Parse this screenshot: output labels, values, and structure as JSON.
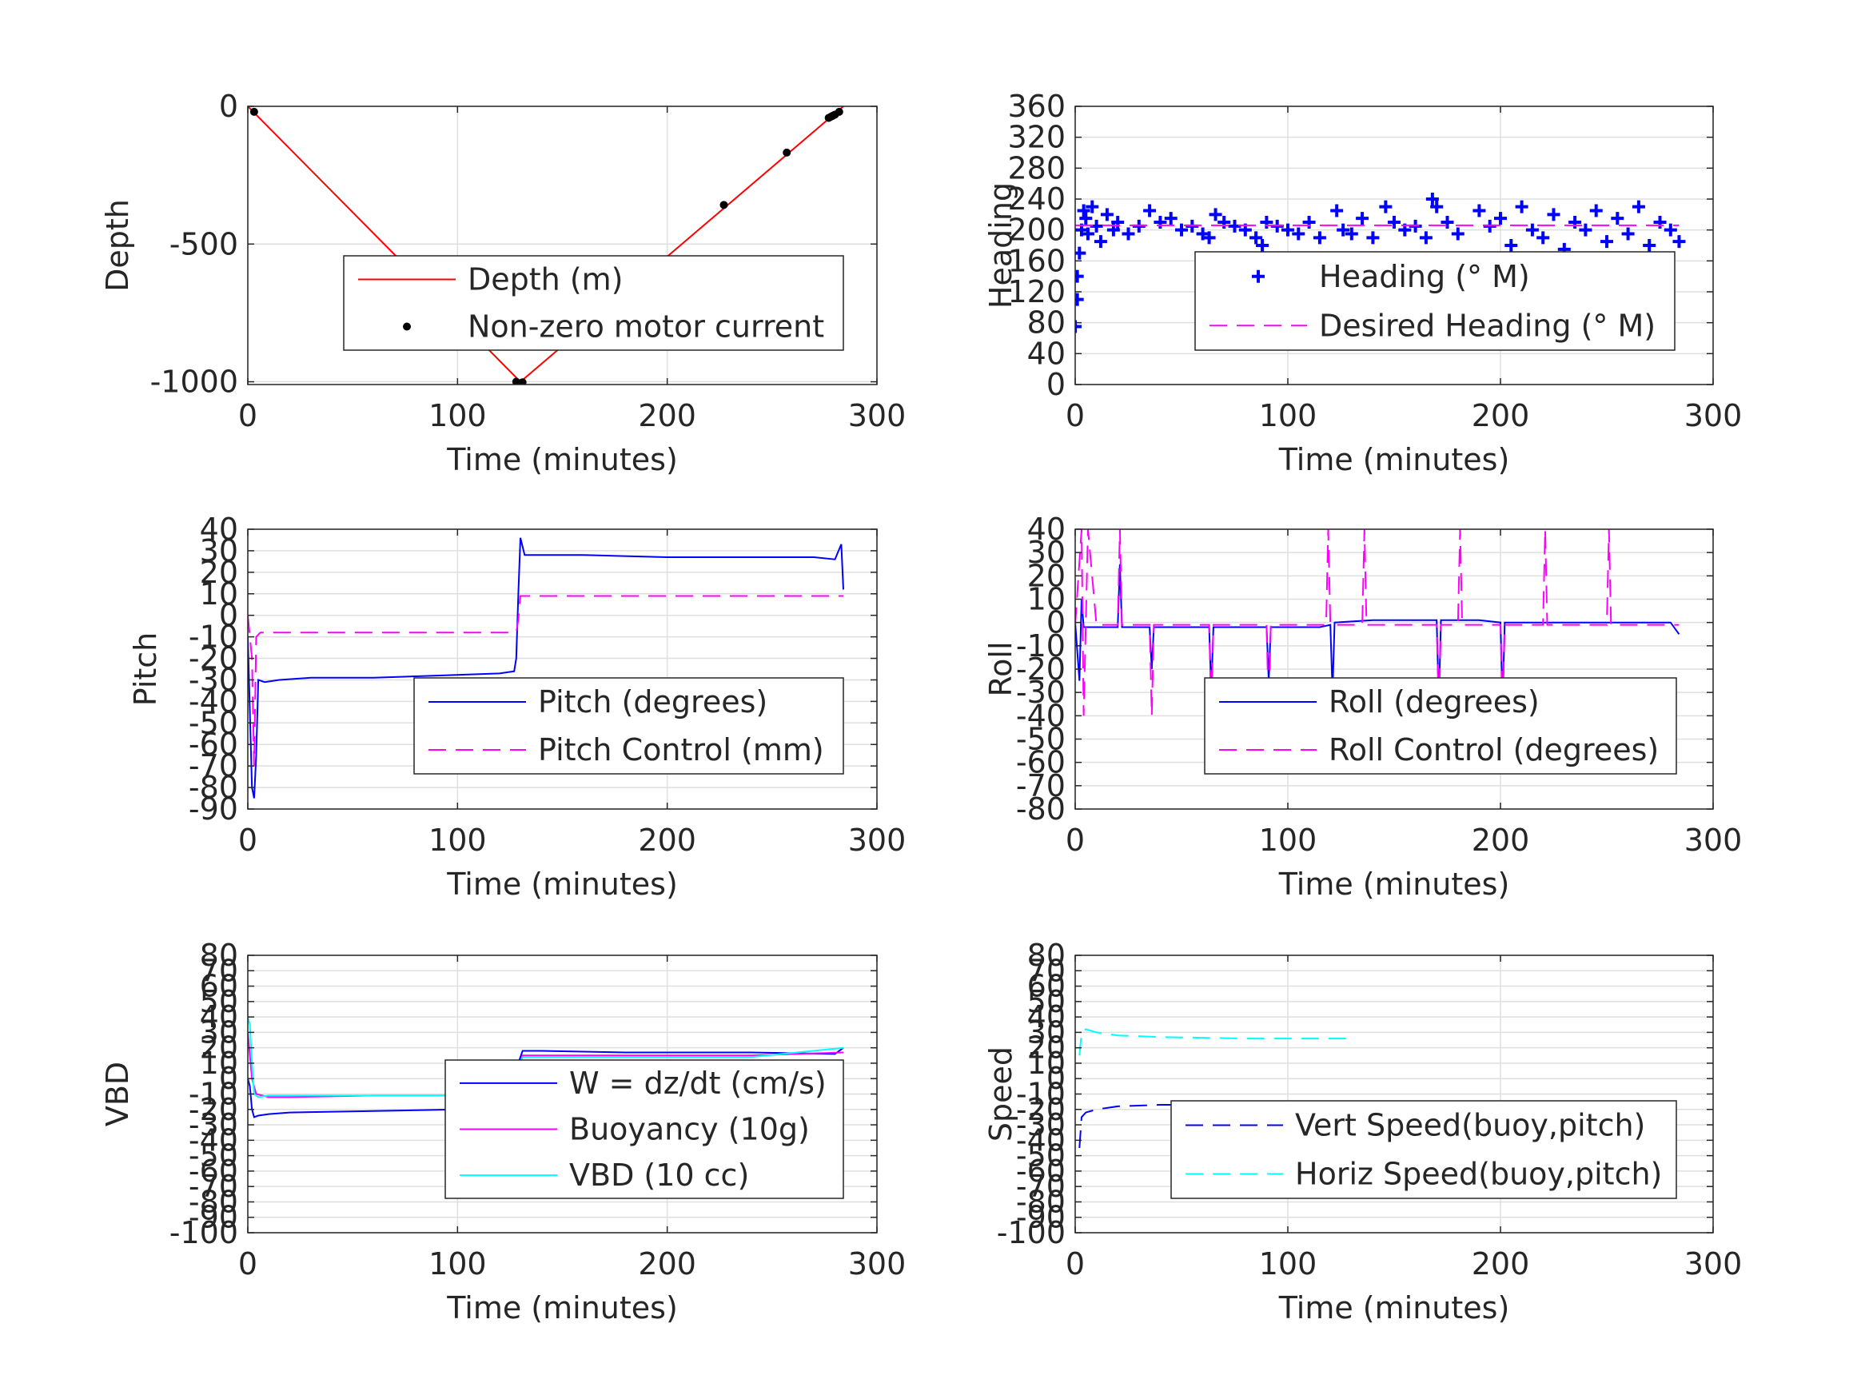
{
  "chart_data": [
    {
      "id": "depth",
      "type": "line",
      "xlabel": "Time (minutes)",
      "ylabel": "Depth",
      "xlim": [
        0,
        300
      ],
      "ylim": [
        -1010,
        0
      ],
      "xticks": [
        0,
        100,
        200,
        300
      ],
      "yticks": [
        0,
        -500,
        -1000
      ],
      "grid": true,
      "legend_position": "center-right",
      "series": [
        {
          "name": "Depth (m)",
          "style": "solid",
          "color": "#ff0000",
          "x": [
            0,
            130,
            284
          ],
          "y": [
            0,
            -1000,
            0
          ]
        },
        {
          "name": "Non-zero motor current",
          "style": "dot",
          "color": "#000000",
          "x": [
            3,
            128,
            129,
            130,
            131,
            227,
            257,
            277,
            278,
            279,
            280,
            282
          ],
          "y": [
            -20,
            -1000,
            -1005,
            -1005,
            -1002,
            -358,
            -168,
            -42,
            -38,
            -34,
            -30,
            -20
          ]
        }
      ]
    },
    {
      "id": "heading",
      "type": "scatter",
      "xlabel": "Time (minutes)",
      "ylabel": "Heading",
      "xlim": [
        0,
        300
      ],
      "ylim": [
        0,
        360
      ],
      "xticks": [
        0,
        100,
        200,
        300
      ],
      "yticks": [
        0,
        40,
        80,
        120,
        160,
        200,
        240,
        280,
        320,
        360
      ],
      "grid": true,
      "legend_position": "center-right",
      "series": [
        {
          "name": "Heading (° M)",
          "style": "plus",
          "color": "#0000ff",
          "x": [
            0,
            1,
            1,
            2,
            3,
            4,
            5,
            6,
            8,
            10,
            12,
            15,
            18,
            20,
            25,
            30,
            35,
            40,
            45,
            50,
            55,
            60,
            63,
            66,
            70,
            75,
            80,
            85,
            88,
            90,
            95,
            100,
            105,
            110,
            115,
            118,
            120,
            123,
            126,
            130,
            135,
            140,
            143,
            146,
            150,
            155,
            160,
            165,
            168,
            170,
            175,
            180,
            185,
            188,
            190,
            195,
            200,
            205,
            210,
            215,
            220,
            225,
            230,
            235,
            240,
            245,
            250,
            255,
            260,
            265,
            270,
            275,
            280,
            284
          ],
          "y": [
            75,
            110,
            140,
            170,
            200,
            225,
            215,
            195,
            230,
            205,
            185,
            220,
            200,
            210,
            195,
            205,
            225,
            210,
            215,
            200,
            205,
            195,
            190,
            220,
            210,
            205,
            200,
            190,
            180,
            210,
            205,
            200,
            195,
            210,
            190,
            160,
            150,
            225,
            200,
            195,
            215,
            190,
            150,
            230,
            210,
            200,
            205,
            190,
            240,
            230,
            210,
            195,
            160,
            150,
            225,
            205,
            215,
            180,
            230,
            200,
            190,
            220,
            175,
            210,
            200,
            225,
            185,
            215,
            195,
            230,
            180,
            210,
            200,
            185
          ]
        },
        {
          "name": "Desired Heading (° M)",
          "style": "dash",
          "color": "#ff00ff",
          "x": [
            0,
            284
          ],
          "y": [
            206,
            206
          ]
        }
      ]
    },
    {
      "id": "pitch",
      "type": "line",
      "xlabel": "Time (minutes)",
      "ylabel": "Pitch",
      "xlim": [
        0,
        300
      ],
      "ylim": [
        -90,
        40
      ],
      "xticks": [
        0,
        100,
        200,
        300
      ],
      "yticks": [
        40,
        30,
        20,
        10,
        0,
        -10,
        -20,
        -30,
        -40,
        -50,
        -60,
        -70,
        -80,
        -90
      ],
      "grid": true,
      "legend_position": "bottom-right",
      "series": [
        {
          "name": "Pitch (degrees)",
          "style": "solid",
          "color": "#0000ff",
          "x": [
            0,
            1,
            2,
            3,
            4,
            5,
            8,
            15,
            30,
            60,
            90,
            120,
            127,
            128,
            129,
            130,
            132,
            140,
            160,
            200,
            240,
            270,
            280,
            283,
            284
          ],
          "y": [
            -10,
            -45,
            -80,
            -85,
            -65,
            -30,
            -31,
            -30,
            -29,
            -29,
            -28,
            -27,
            -26,
            -20,
            10,
            36,
            28,
            28,
            28,
            27,
            27,
            27,
            26,
            33,
            12
          ]
        },
        {
          "name": "Pitch Control (mm)",
          "style": "dash",
          "color": "#ff00ff",
          "x": [
            0,
            2,
            3,
            4,
            6,
            10,
            60,
            110,
            128,
            129,
            130,
            132,
            200,
            284
          ],
          "y": [
            0,
            -20,
            -70,
            -10,
            -8,
            -8,
            -8,
            -8,
            -8,
            -2,
            9,
            9,
            9,
            9
          ]
        }
      ]
    },
    {
      "id": "roll",
      "type": "line",
      "xlabel": "Time (minutes)",
      "ylabel": "Roll",
      "xlim": [
        0,
        300
      ],
      "ylim": [
        -80,
        40
      ],
      "xticks": [
        0,
        100,
        200,
        300
      ],
      "yticks": [
        40,
        30,
        20,
        10,
        0,
        -10,
        -20,
        -30,
        -40,
        -50,
        -60,
        -70,
        -80
      ],
      "grid": true,
      "legend_position": "center-right",
      "series": [
        {
          "name": "Roll (degrees)",
          "style": "solid",
          "color": "#0000ff",
          "x": [
            0,
            2,
            3,
            4,
            5,
            10,
            20,
            21,
            22,
            35,
            36,
            37,
            63,
            64,
            65,
            90,
            91,
            92,
            115,
            120,
            121,
            122,
            140,
            170,
            171,
            172,
            190,
            200,
            201,
            202,
            230,
            260,
            280,
            284
          ],
          "y": [
            0,
            -25,
            10,
            -2,
            -2,
            -2,
            -2,
            25,
            -2,
            -2,
            -20,
            -2,
            -2,
            -30,
            -2,
            -2,
            -25,
            -2,
            -2,
            -1,
            -30,
            0,
            1,
            1,
            -35,
            1,
            1,
            0,
            -35,
            0,
            0,
            0,
            0,
            -5
          ]
        },
        {
          "name": "Roll Control (degrees)",
          "style": "dash",
          "color": "#ff00ff",
          "x": [
            0,
            3,
            4,
            6,
            10,
            20,
            21,
            22,
            35,
            36,
            37,
            63,
            64,
            65,
            90,
            91,
            92,
            118,
            119,
            120,
            135,
            136,
            137,
            170,
            171,
            172,
            180,
            181,
            182,
            200,
            201,
            202,
            220,
            221,
            222,
            250,
            251,
            252,
            284
          ],
          "y": [
            -1,
            40,
            -40,
            40,
            -1,
            -1,
            40,
            -1,
            -1,
            -40,
            -1,
            -1,
            -40,
            -1,
            -1,
            -40,
            -1,
            -1,
            40,
            -1,
            -1,
            40,
            -1,
            -1,
            -40,
            -1,
            -1,
            40,
            -1,
            -1,
            -40,
            -1,
            -1,
            40,
            -1,
            -1,
            40,
            -1,
            -1
          ]
        }
      ]
    },
    {
      "id": "vbd",
      "type": "line",
      "xlabel": "Time (minutes)",
      "ylabel": "VBD",
      "xlim": [
        0,
        300
      ],
      "ylim": [
        -100,
        80
      ],
      "xticks": [
        0,
        100,
        200,
        300
      ],
      "yticks": [
        80,
        70,
        60,
        50,
        40,
        30,
        20,
        10,
        0,
        -10,
        -20,
        -30,
        -40,
        -50,
        -60,
        -70,
        -80,
        -90,
        -100
      ],
      "grid": true,
      "legend_position": "center-right",
      "series": [
        {
          "name": "W = dz/dt (cm/s)",
          "style": "solid",
          "color": "#0000ff",
          "x": [
            0,
            1,
            2,
            3,
            5,
            10,
            20,
            60,
            100,
            125,
            128,
            129,
            131,
            140,
            180,
            240,
            280,
            284
          ],
          "y": [
            0,
            -5,
            -20,
            -25,
            -24,
            -23,
            -22,
            -21,
            -20,
            -19,
            -10,
            10,
            18,
            18,
            17,
            17,
            16,
            20
          ]
        },
        {
          "name": "Buoyancy (10g)",
          "style": "solid",
          "color": "#ff00ff",
          "x": [
            0,
            2,
            4,
            10,
            20,
            60,
            100,
            125,
            129,
            131,
            180,
            240,
            284
          ],
          "y": [
            30,
            0,
            -10,
            -12,
            -12,
            -11,
            -11,
            -11,
            5,
            15,
            15,
            15,
            17
          ]
        },
        {
          "name": "VBD (10 cc)",
          "style": "solid",
          "color": "#00ffff",
          "x": [
            0,
            1,
            2,
            3,
            5,
            10,
            60,
            100,
            125,
            129,
            131,
            180,
            240,
            284
          ],
          "y": [
            40,
            35,
            10,
            -10,
            -12,
            -11,
            -11,
            -11,
            -11,
            5,
            14,
            14,
            14,
            20
          ]
        }
      ]
    },
    {
      "id": "speed",
      "type": "line",
      "xlabel": "Time (minutes)",
      "ylabel": "Speed",
      "xlim": [
        0,
        300
      ],
      "ylim": [
        -100,
        80
      ],
      "xticks": [
        0,
        100,
        200,
        300
      ],
      "yticks": [
        80,
        70,
        60,
        50,
        40,
        30,
        20,
        10,
        0,
        -10,
        -20,
        -30,
        -40,
        -50,
        -60,
        -70,
        -80,
        -90,
        -100
      ],
      "grid": true,
      "legend_position": "bottom-right",
      "series": [
        {
          "name": "Vert Speed(buoy,pitch)",
          "style": "dash",
          "color": "#0000ff",
          "x": [
            2,
            3,
            5,
            10,
            20,
            40,
            80,
            120,
            128
          ],
          "y": [
            -45,
            -25,
            -22,
            -20,
            -18,
            -17,
            -17,
            -16,
            -16
          ]
        },
        {
          "name": "Horiz Speed(buoy,pitch)",
          "style": "dash",
          "color": "#00ffff",
          "x": [
            2,
            3,
            5,
            10,
            20,
            40,
            80,
            120,
            128
          ],
          "y": [
            15,
            30,
            32,
            30,
            28,
            27,
            26,
            26,
            26
          ]
        }
      ]
    }
  ]
}
